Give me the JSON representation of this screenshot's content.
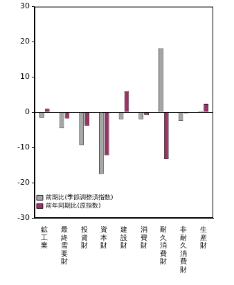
{
  "chart_data": {
    "type": "bar",
    "categories": [
      "鉱工業",
      "最終需要財",
      "投資財",
      "資本財",
      "建設財",
      "消費財",
      "耐久消費財",
      "非耐久消費財",
      "生産財"
    ],
    "series": [
      {
        "name": "前期比(季節調整済指数)",
        "color": "#a6a6a6",
        "values": [
          -1.5,
          -4.5,
          -9.3,
          -17.5,
          -2.0,
          -2.0,
          18.2,
          -2.5,
          0.3
        ]
      },
      {
        "name": "前年同期比(原指数)",
        "color": "#993366",
        "values": [
          1.0,
          -1.8,
          -3.8,
          -12.2,
          6.0,
          -0.8,
          -13.3,
          -0.3,
          2.4
        ]
      }
    ],
    "ylim": [
      -30,
      30
    ],
    "yticks": [
      -30,
      -20,
      -10,
      0,
      10,
      20,
      30
    ],
    "grid": false,
    "legend": "upper right"
  }
}
